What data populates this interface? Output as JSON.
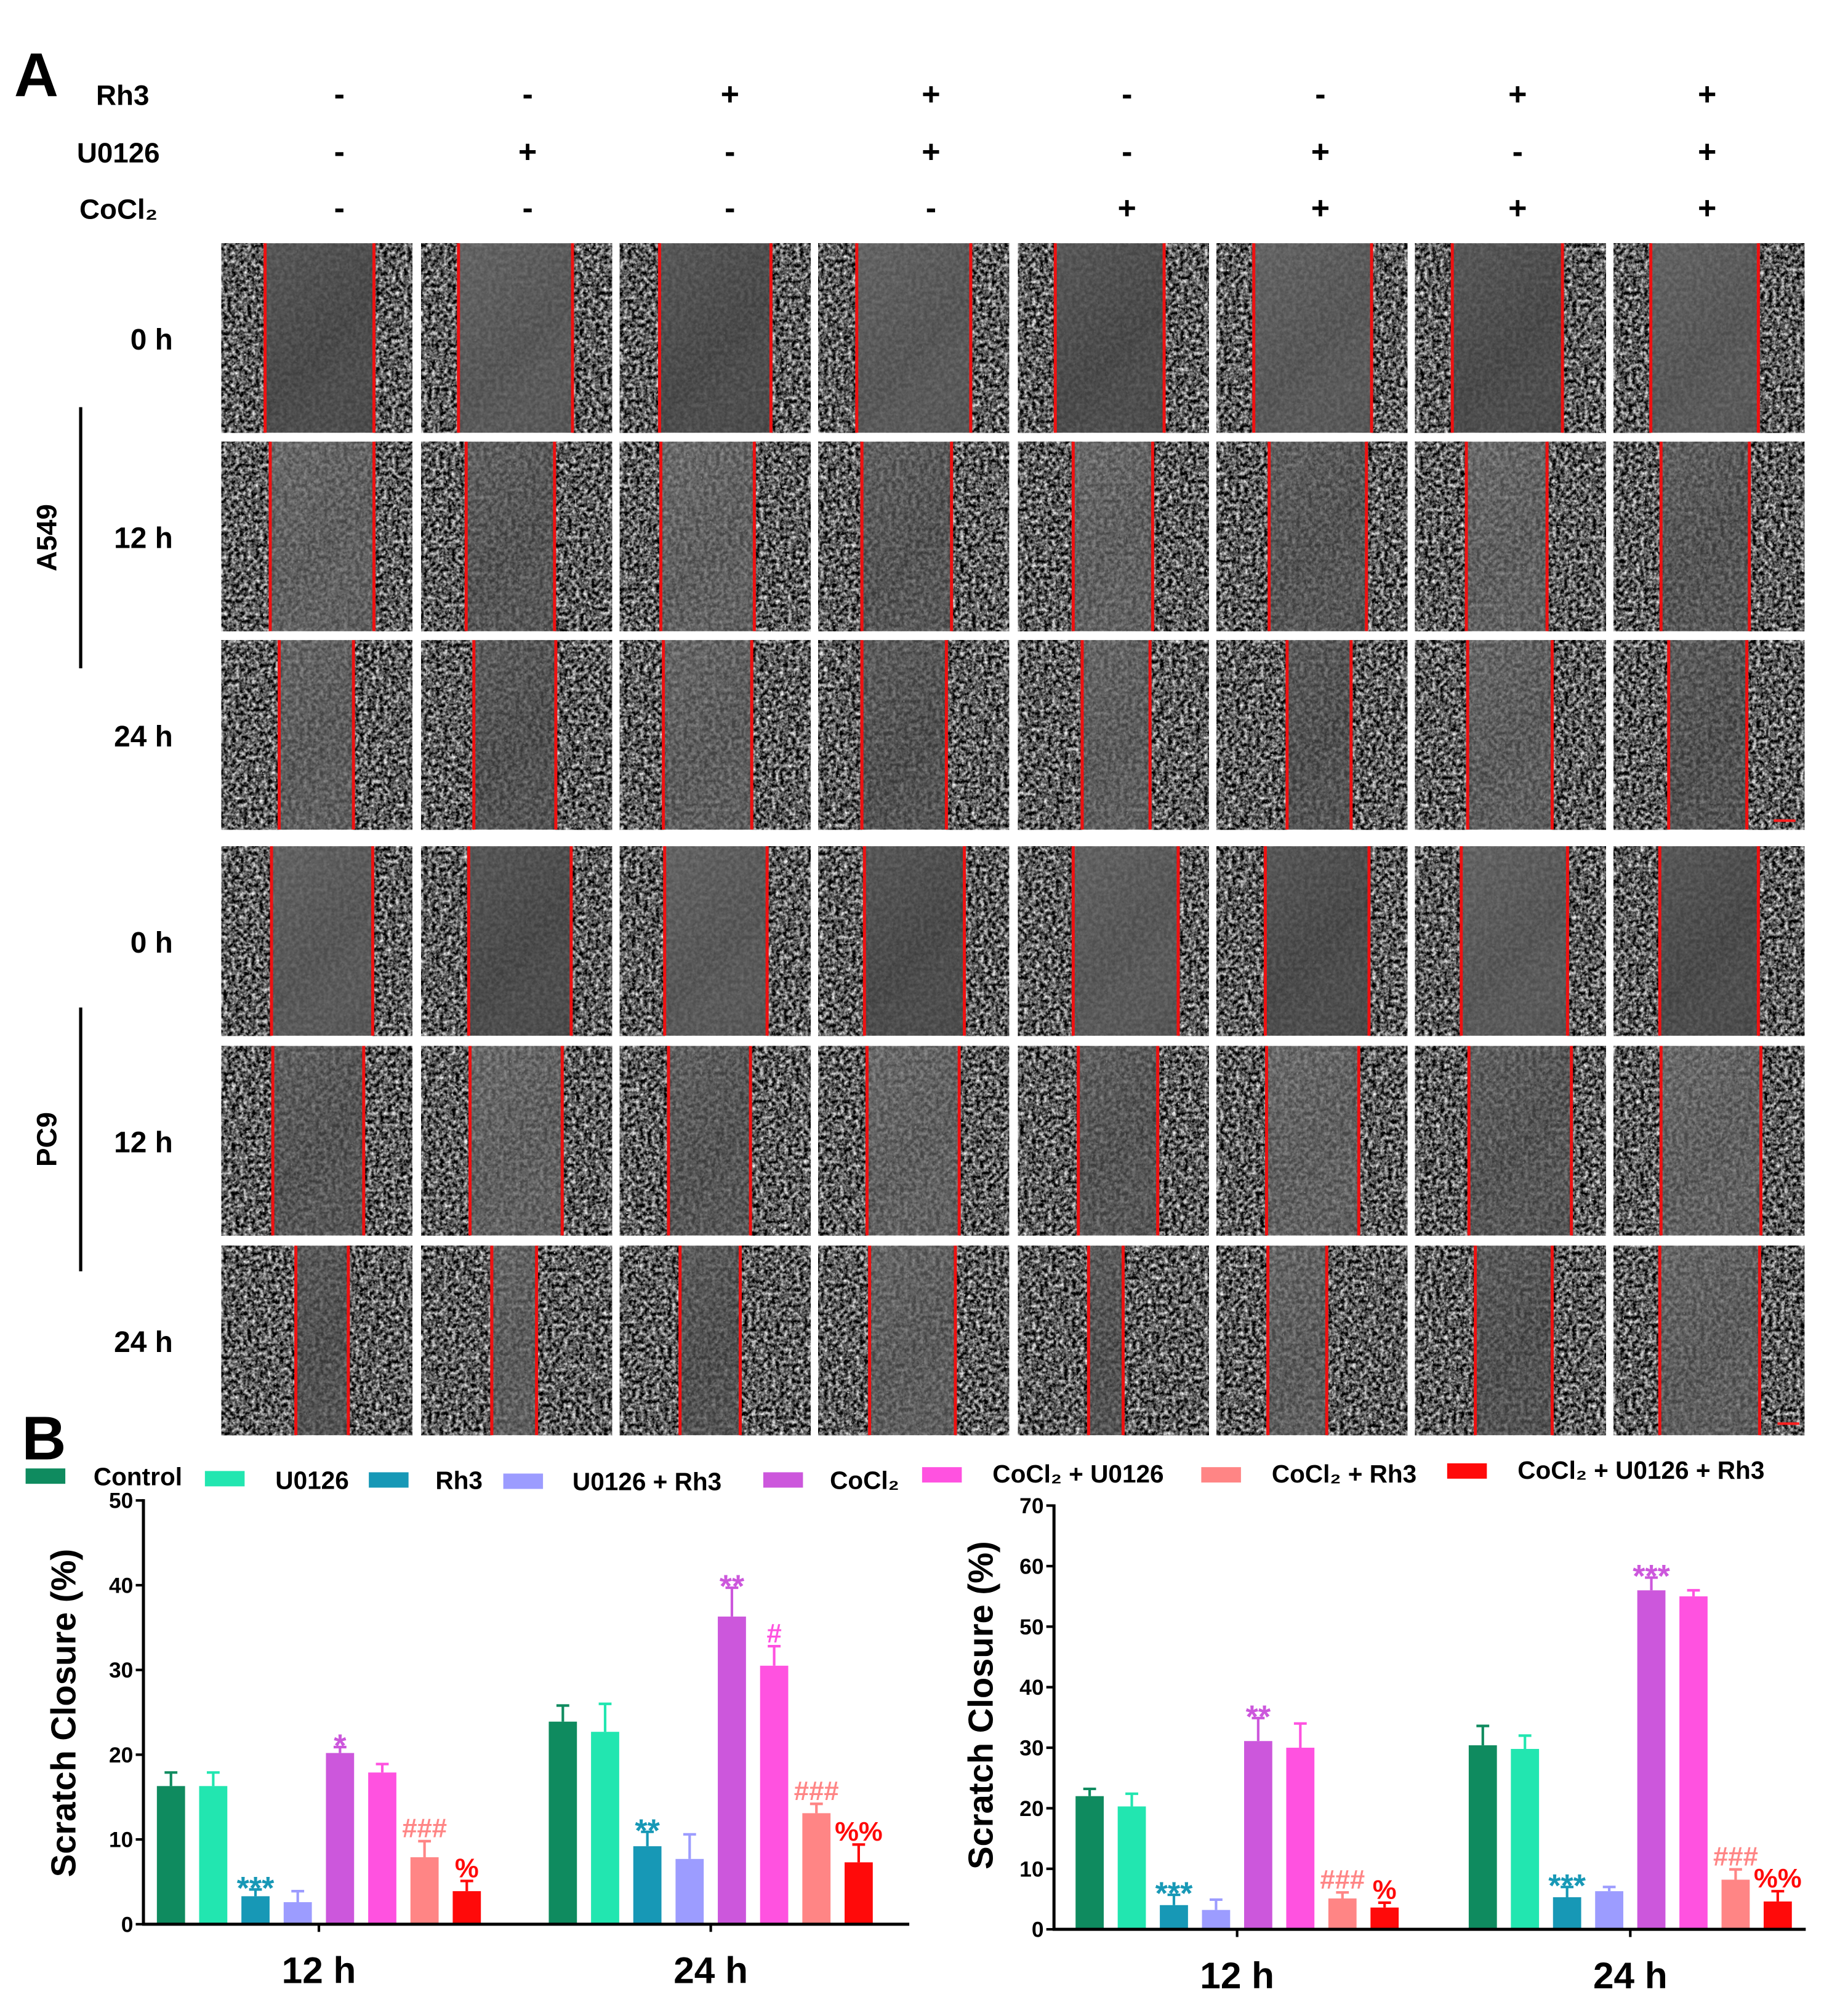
{
  "panel_a": {
    "label": "A",
    "treatments": [
      {
        "name": "Rh3",
        "signs": [
          "-",
          "-",
          "+",
          "+",
          "-",
          "-",
          "+",
          "+"
        ]
      },
      {
        "name": "U0126",
        "signs": [
          "-",
          "+",
          "-",
          "+",
          "-",
          "+",
          "-",
          "+"
        ]
      },
      {
        "name": "CoCl₂",
        "signs": [
          "-",
          "-",
          "-",
          "-",
          "+",
          "+",
          "+",
          "+"
        ]
      }
    ],
    "cell_lines": [
      {
        "name": "A549",
        "timepoints": [
          "0 h",
          "12 h",
          "24 h"
        ]
      },
      {
        "name": "PC9",
        "timepoints": [
          "0 h",
          "12 h",
          "24 h"
        ]
      }
    ]
  },
  "panel_b": {
    "label": "B"
  },
  "chart_data": [
    {
      "type": "bar",
      "legend": "top",
      "grid": false,
      "categories": [
        "12 h",
        "24 h"
      ],
      "ylabel": "Scratch Closure (%)",
      "ylim": [
        0,
        50
      ],
      "yticks": [
        0,
        10,
        20,
        30,
        40,
        50
      ],
      "series": [
        {
          "name": "Control",
          "color": "#0f8b5f",
          "values": [
            16.3,
            23.9
          ],
          "error": [
            1.6,
            1.9
          ]
        },
        {
          "name": "U0126",
          "color": "#22e6b0",
          "values": [
            16.3,
            22.7
          ],
          "error": [
            1.6,
            3.3
          ]
        },
        {
          "name": "Rh3",
          "color": "#1798b6",
          "values": [
            3.3,
            9.2
          ],
          "error": [
            0.8,
            1.7
          ]
        },
        {
          "name": "U0126 + Rh3",
          "color": "#9c9cff",
          "values": [
            2.6,
            7.7
          ],
          "error": [
            1.3,
            2.9
          ]
        },
        {
          "name": "CoCl₂",
          "color": "#cc57dc",
          "values": [
            20.2,
            36.3
          ],
          "error": [
            0.7,
            3.4
          ]
        },
        {
          "name": "CoCl₂ + U0126",
          "color": "#ff52e0",
          "values": [
            17.9,
            30.5
          ],
          "error": [
            1.0,
            2.3
          ]
        },
        {
          "name": "CoCl₂ + Rh3",
          "color": "#ff8585",
          "values": [
            7.9,
            13.1
          ],
          "error": [
            1.9,
            1.1
          ]
        },
        {
          "name": "CoCl₂ + U0126 + Rh3",
          "color": "#ff0a0a",
          "values": [
            3.9,
            7.3
          ],
          "error": [
            1.2,
            2.1
          ]
        }
      ],
      "annotations": [
        {
          "category": 0,
          "series": 2,
          "text": "***"
        },
        {
          "category": 0,
          "series": 4,
          "text": "*"
        },
        {
          "category": 0,
          "series": 6,
          "text": "###"
        },
        {
          "category": 0,
          "series": 7,
          "text": "%"
        },
        {
          "category": 1,
          "series": 2,
          "text": "**"
        },
        {
          "category": 1,
          "series": 4,
          "text": "**"
        },
        {
          "category": 1,
          "series": 5,
          "text": "#"
        },
        {
          "category": 1,
          "series": 6,
          "text": "###"
        },
        {
          "category": 1,
          "series": 7,
          "text": "%%"
        }
      ]
    },
    {
      "type": "bar",
      "legend": "top",
      "grid": false,
      "categories": [
        "12 h",
        "24 h"
      ],
      "ylabel": "Scratch Closure (%)",
      "ylim": [
        0,
        70
      ],
      "yticks": [
        0,
        10,
        20,
        30,
        40,
        50,
        60,
        70
      ],
      "series": [
        {
          "name": "Control",
          "color": "#0f8b5f",
          "values": [
            22.0,
            30.4
          ],
          "error": [
            1.2,
            3.2
          ]
        },
        {
          "name": "U0126",
          "color": "#22e6b0",
          "values": [
            20.3,
            29.8
          ],
          "error": [
            2.1,
            2.2
          ]
        },
        {
          "name": "Rh3",
          "color": "#1798b6",
          "values": [
            4.0,
            5.3
          ],
          "error": [
            1.7,
            1.7
          ]
        },
        {
          "name": "U0126 + Rh3",
          "color": "#9c9cff",
          "values": [
            3.2,
            6.3
          ],
          "error": [
            1.7,
            0.7
          ]
        },
        {
          "name": "CoCl₂",
          "color": "#cc57dc",
          "values": [
            31.1,
            56.0
          ],
          "error": [
            3.8,
            2.1
          ]
        },
        {
          "name": "CoCl₂ + U0126",
          "color": "#ff52e0",
          "values": [
            30.0,
            55.0
          ],
          "error": [
            4.0,
            1.0
          ]
        },
        {
          "name": "CoCl₂ + Rh3",
          "color": "#ff8585",
          "values": [
            5.1,
            8.2
          ],
          "error": [
            1.0,
            1.7
          ]
        },
        {
          "name": "CoCl₂ + U0126 + Rh3",
          "color": "#ff0a0a",
          "values": [
            3.6,
            4.6
          ],
          "error": [
            0.8,
            1.7
          ]
        }
      ],
      "annotations": [
        {
          "category": 0,
          "series": 2,
          "text": "***"
        },
        {
          "category": 0,
          "series": 4,
          "text": "**"
        },
        {
          "category": 0,
          "series": 6,
          "text": "###"
        },
        {
          "category": 0,
          "series": 7,
          "text": "%"
        },
        {
          "category": 1,
          "series": 2,
          "text": "***"
        },
        {
          "category": 1,
          "series": 4,
          "text": "***"
        },
        {
          "category": 1,
          "series": 6,
          "text": "###"
        },
        {
          "category": 1,
          "series": 7,
          "text": "%%"
        }
      ]
    }
  ]
}
